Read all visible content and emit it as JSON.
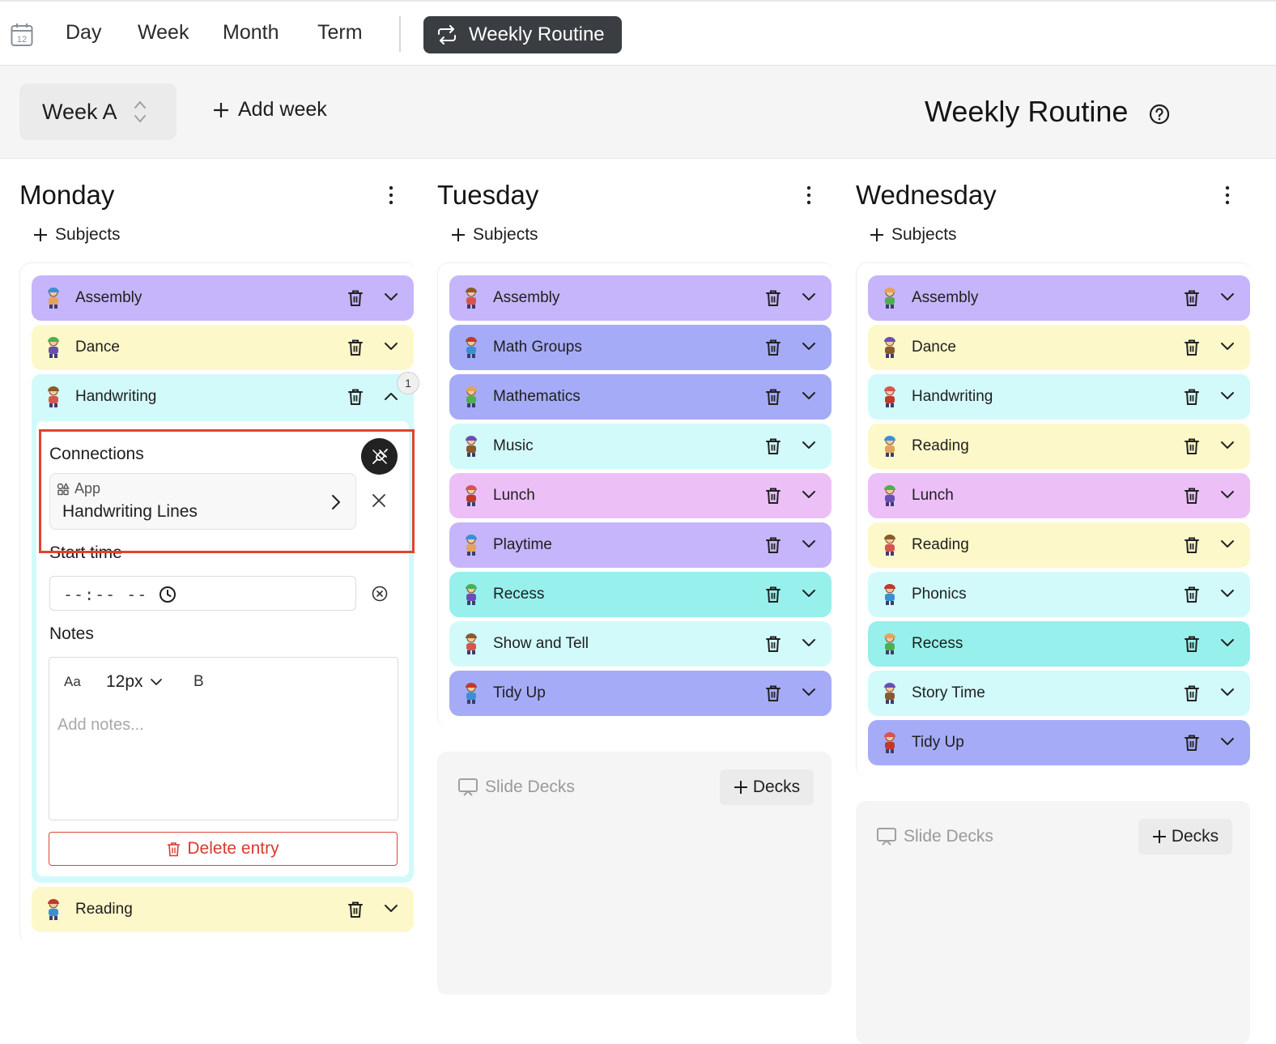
{
  "topbar": {
    "calendar_day": "12",
    "tabs": [
      "Day",
      "Week",
      "Month",
      "Term"
    ],
    "routine_button": "Weekly Routine"
  },
  "header": {
    "week_selector": "Week A",
    "add_week": "Add week",
    "title": "Weekly Routine"
  },
  "days": [
    {
      "name": "Monday",
      "add_subjects": "Subjects",
      "entries": [
        "Assembly",
        "Dance",
        "Handwriting",
        "Reading"
      ]
    },
    {
      "name": "Tuesday",
      "add_subjects": "Subjects",
      "entries": [
        "Assembly",
        "Math Groups",
        "Mathematics",
        "Music",
        "Lunch",
        "Playtime",
        "Recess",
        "Show and Tell",
        "Tidy Up"
      ]
    },
    {
      "name": "Wednesday",
      "add_subjects": "Subjects",
      "entries": [
        "Assembly",
        "Dance",
        "Handwriting",
        "Reading",
        "Lunch",
        "Reading",
        "Phonics",
        "Recess",
        "Story Time",
        "Tidy Up"
      ]
    }
  ],
  "expanded_entry": {
    "badge_count": "1",
    "connections_label": "Connections",
    "app_tag": "App",
    "app_name": "Handwriting Lines",
    "start_time_label": "Start time",
    "start_time_value": "--:-- --",
    "notes_label": "Notes",
    "font_control": "Aa",
    "font_size": "12px",
    "bold_control": "B",
    "notes_placeholder": "Add notes...",
    "delete_label": "Delete entry"
  },
  "slide_decks": {
    "title": "Slide Decks",
    "add_label": "Decks"
  },
  "colors": {
    "purple": "#c6b5fb",
    "yellow": "#fdf8c9",
    "cyan": "#d2fafa",
    "teal": "#97f0eb",
    "blue": "#a6abf7",
    "pink": "#ecc0f7",
    "delete_red": "#d93a2f",
    "highlight_red": "#e0432e"
  }
}
